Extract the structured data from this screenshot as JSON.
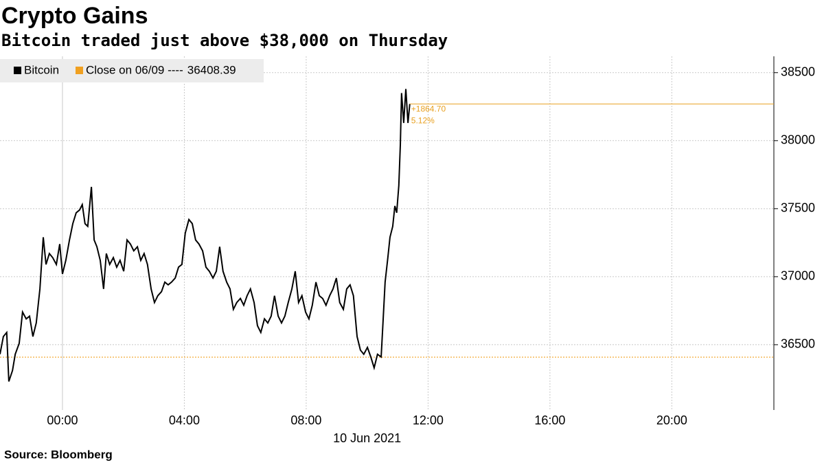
{
  "chart_data": {
    "type": "line",
    "title": "Crypto Gains",
    "subtitle": "Bitcoin traded just above $38,000 on Thursday",
    "source": "Source: Bloomberg",
    "x_date_label": "10 Jun 2021",
    "x": [
      -2.05,
      -1.94,
      -1.83,
      -1.76,
      -1.64,
      -1.55,
      -1.42,
      -1.31,
      -1.19,
      -1.08,
      -0.97,
      -0.86,
      -0.74,
      -0.63,
      -0.54,
      -0.43,
      -0.32,
      -0.2,
      -0.09,
      0,
      0.11,
      0.23,
      0.34,
      0.45,
      0.56,
      0.65,
      0.74,
      0.83,
      0.95,
      1.04,
      1.13,
      1.24,
      1.35,
      1.44,
      1.55,
      1.67,
      1.78,
      1.89,
      2.01,
      2.12,
      2.23,
      2.34,
      2.46,
      2.57,
      2.68,
      2.79,
      2.91,
      3.02,
      3.13,
      3.25,
      3.36,
      3.47,
      3.58,
      3.7,
      3.81,
      3.92,
      4.03,
      4.15,
      4.26,
      4.37,
      4.48,
      4.6,
      4.71,
      4.82,
      4.94,
      5.05,
      5.16,
      5.27,
      5.39,
      5.5,
      5.61,
      5.72,
      5.84,
      5.95,
      6.06,
      6.17,
      6.29,
      6.4,
      6.51,
      6.63,
      6.74,
      6.85,
      6.96,
      7.08,
      7.19,
      7.3,
      7.41,
      7.53,
      7.64,
      7.75,
      7.86,
      7.98,
      8.09,
      8.2,
      8.32,
      8.43,
      8.54,
      8.65,
      8.77,
      8.88,
      8.99,
      9.1,
      9.22,
      9.33,
      9.44,
      9.55,
      9.67,
      9.78,
      9.89,
      10.01,
      10.12,
      10.23,
      10.34,
      10.46,
      10.52,
      10.59,
      10.68,
      10.75,
      10.84,
      10.91,
      10.97,
      11.04,
      11.09,
      11.13,
      11.2,
      11.27,
      11.34,
      11.4
    ],
    "series": [
      {
        "name": "Bitcoin",
        "color": "#000000",
        "values": [
          36430,
          36560,
          36590,
          36230,
          36310,
          36430,
          36510,
          36740,
          36690,
          36710,
          36560,
          36660,
          36910,
          37290,
          37090,
          37170,
          37140,
          37090,
          37240,
          37020,
          37120,
          37270,
          37390,
          37470,
          37490,
          37530,
          37390,
          37370,
          37660,
          37270,
          37220,
          37120,
          36910,
          37170,
          37090,
          37140,
          37070,
          37120,
          37040,
          37270,
          37240,
          37190,
          37220,
          37120,
          37170,
          37090,
          36910,
          36810,
          36860,
          36890,
          36960,
          36940,
          36960,
          36990,
          37070,
          37090,
          37320,
          37420,
          37390,
          37270,
          37240,
          37190,
          37070,
          37040,
          36990,
          37040,
          37220,
          37040,
          36960,
          36910,
          36760,
          36810,
          36840,
          36790,
          36860,
          36910,
          36810,
          36640,
          36590,
          36690,
          36660,
          36710,
          36860,
          36710,
          36660,
          36710,
          36810,
          36910,
          37040,
          36810,
          36860,
          36740,
          36690,
          36790,
          36960,
          36860,
          36840,
          36790,
          36860,
          36910,
          36990,
          36810,
          36760,
          36910,
          36940,
          36860,
          36560,
          36460,
          36430,
          36480,
          36410,
          36330,
          36430,
          36410,
          36660,
          36960,
          37140,
          37290,
          37370,
          37520,
          37470,
          37670,
          37970,
          38350,
          38130,
          38380,
          38130,
          38270
        ]
      }
    ],
    "reference_line": {
      "label": "Close on 06/09 ----",
      "value": 36408.39,
      "color": "#f0a020"
    },
    "change_annotation": {
      "color": "#e8a020",
      "change": {
        "value": 1864.7,
        "label": "+1864.70"
      },
      "percent": {
        "value": 5.12,
        "label": "5.12%"
      }
    },
    "xlim": [
      -2.05,
      23.35
    ],
    "xticks": [
      {
        "value": 0,
        "label": "00:00"
      },
      {
        "value": 4,
        "label": "04:00"
      },
      {
        "value": 8,
        "label": "08:00"
      },
      {
        "value": 12,
        "label": "12:00"
      },
      {
        "value": 16,
        "label": "16:00"
      },
      {
        "value": 20,
        "label": "20:00"
      }
    ],
    "ylim": [
      36020,
      38620
    ],
    "yticks": [
      36500,
      37000,
      37500,
      38000,
      38500
    ],
    "grid": true
  }
}
